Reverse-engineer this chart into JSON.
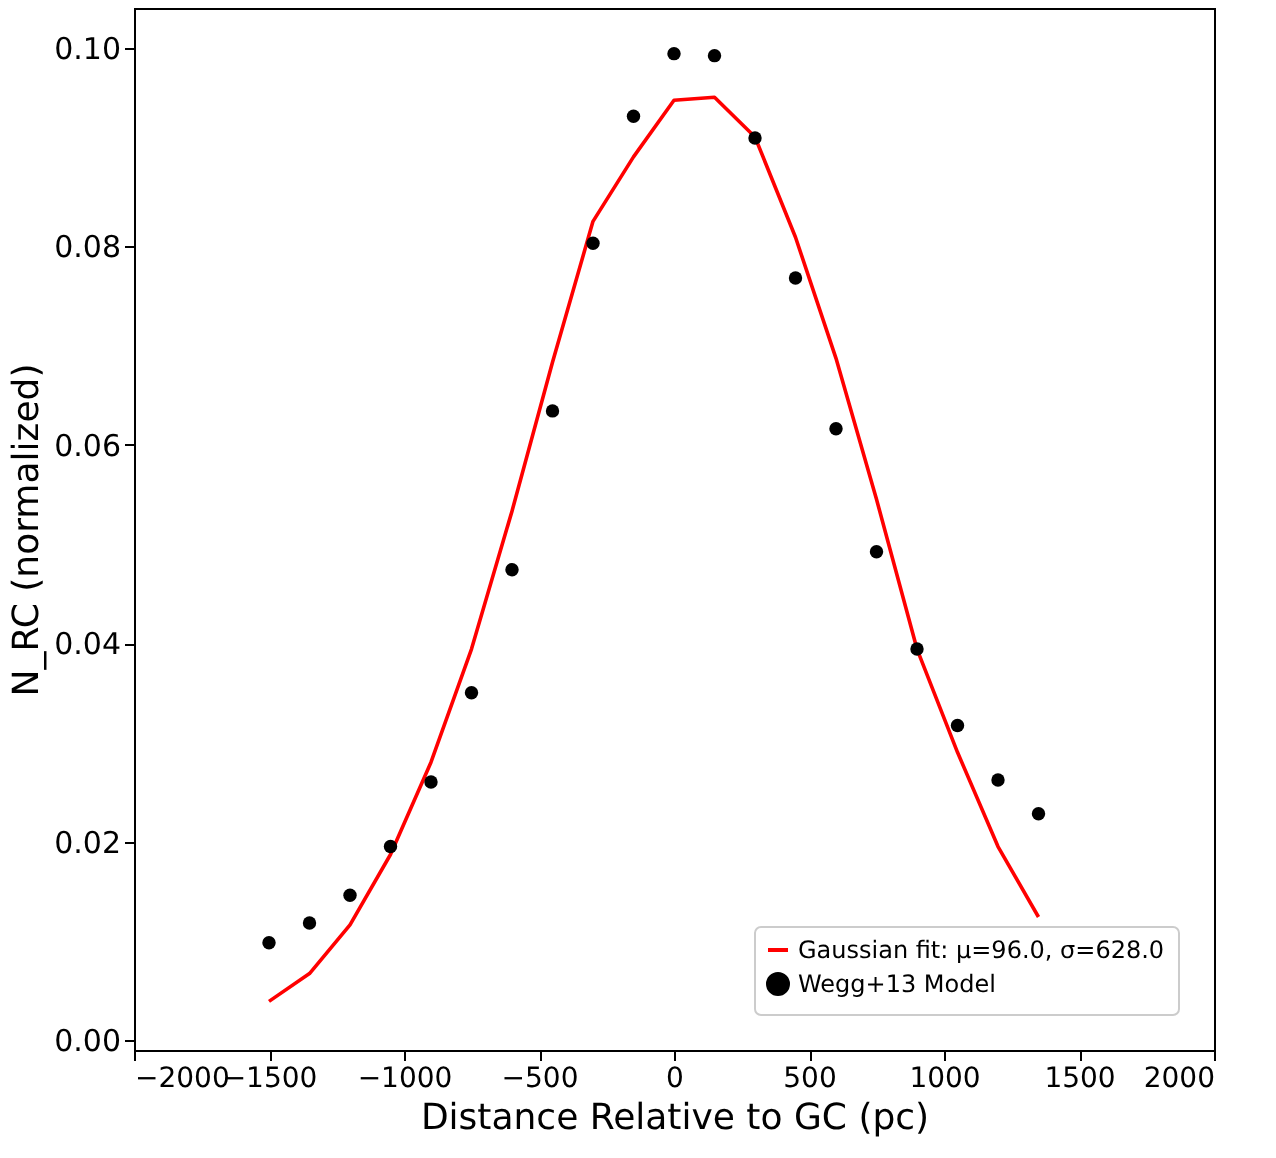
{
  "chart_data": {
    "type": "scatter",
    "xlabel": "Distance Relative to GC (pc)",
    "ylabel": "N_RC (normalized)",
    "xlim": [
      -2000,
      2000
    ],
    "ylim": [
      -0.001,
      0.104
    ],
    "xticks": [
      {
        "value": -2000,
        "label": "−2000"
      },
      {
        "value": -1500,
        "label": "−1500"
      },
      {
        "value": -1000,
        "label": "−1000"
      },
      {
        "value": -500,
        "label": "−500"
      },
      0,
      500,
      1000,
      1500,
      2000
    ],
    "yticks": [
      {
        "value": 0,
        "label": "0.00"
      },
      {
        "value": 0.02,
        "label": "0.02"
      },
      {
        "value": 0.04,
        "label": "0.04"
      },
      {
        "value": 0.06,
        "label": "0.06"
      },
      {
        "value": 0.08,
        "label": "0.08"
      },
      {
        "value": 0.1,
        "label": "0.10"
      }
    ],
    "grid": false,
    "legend": "bottom right",
    "series": [
      {
        "name": "Gaussian fit: μ=96.0, σ=628.0",
        "type": "line",
        "color": "#ff0000",
        "line_style": "solid",
        "marker": "none",
        "x": [
          -1500,
          -1350,
          -1200,
          -1050,
          -900,
          -750,
          -600,
          -450,
          -300,
          -150,
          0,
          150,
          300,
          450,
          600,
          750,
          900,
          1050,
          1200,
          1350
        ],
        "values": [
          0.0039,
          0.0067,
          0.0116,
          0.0187,
          0.028,
          0.0394,
          0.0533,
          0.0683,
          0.0825,
          0.089,
          0.0947,
          0.095,
          0.091,
          0.0809,
          0.0687,
          0.0545,
          0.0394,
          0.029,
          0.0195,
          0.0124
        ]
      },
      {
        "name": "Wegg+13 Model",
        "color": "#000000",
        "marker": "circle",
        "x": [
          -1500,
          -1350,
          -1200,
          -1050,
          -900,
          -750,
          -600,
          -450,
          -300,
          -150,
          0,
          150,
          300,
          450,
          600,
          750,
          900,
          1050,
          1200,
          1350
        ],
        "values": [
          0.0098,
          0.0118,
          0.0146,
          0.0195,
          0.026,
          0.035,
          0.0474,
          0.0634,
          0.0803,
          0.0931,
          0.0994,
          0.0992,
          0.0909,
          0.0768,
          0.0616,
          0.0492,
          0.0394,
          0.0317,
          0.0262,
          0.0228
        ]
      }
    ]
  }
}
